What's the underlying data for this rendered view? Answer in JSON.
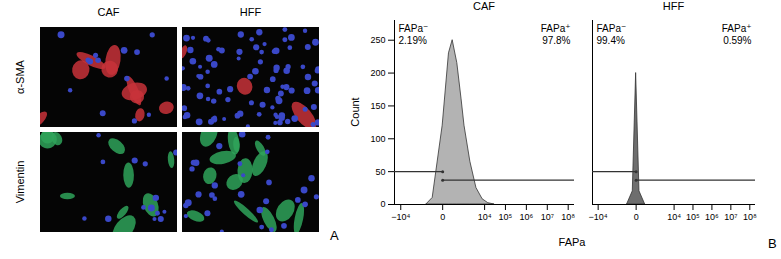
{
  "panel_a": {
    "letter": "A",
    "columns": [
      "CAF",
      "HFF"
    ],
    "rows": [
      "α-SMA",
      "Vimentin"
    ]
  },
  "panel_b": {
    "letter": "B",
    "xlabel": "FAPa",
    "ylabel": "Count"
  },
  "chart_data": [
    {
      "type": "area",
      "title": "CAF",
      "color": "#a6a6a6",
      "log": "x",
      "x": [
        -500,
        -200,
        0,
        100,
        200,
        400,
        700,
        1000,
        2000,
        4000,
        8000,
        15000,
        30000
      ],
      "values": [
        0,
        10,
        120,
        230,
        250,
        215,
        160,
        120,
        65,
        25,
        8,
        2,
        0
      ],
      "xlim": [
        -20000,
        200000000
      ],
      "xticks": [
        {
          "value": -10000,
          "label": "−10⁴"
        },
        0,
        {
          "value": 10000,
          "label": "10⁴"
        },
        {
          "value": 100000,
          "label": "10⁵"
        },
        {
          "value": 1000000,
          "label": "10⁶"
        },
        {
          "value": 10000000,
          "label": "10⁷"
        },
        {
          "value": 100000000,
          "label": "10⁸"
        }
      ],
      "ylim": [
        0,
        280
      ],
      "yticks": [
        0,
        50,
        100,
        150,
        200,
        250
      ],
      "gates": [
        {
          "name": "FAPa⁻",
          "value": 2.19,
          "value_label": "2.19%",
          "range": [
            -20000,
            0
          ],
          "level": 50
        },
        {
          "name": "FAPa⁺",
          "value": 97.8,
          "value_label": "97.8%",
          "range": [
            0,
            200000000
          ],
          "level": 37
        }
      ]
    },
    {
      "type": "area",
      "title": "HFF",
      "color": "#555555",
      "log": "x",
      "tick_labels": "x",
      "x": [
        -200,
        -50,
        0,
        50,
        200
      ],
      "values": [
        0,
        20,
        200,
        20,
        0
      ],
      "xlim": [
        -20000,
        200000000
      ],
      "xticks": [
        {
          "value": -10000,
          "label": "−10⁴"
        },
        0,
        {
          "value": 10000,
          "label": "10⁴"
        },
        {
          "value": 100000,
          "label": "10⁵"
        },
        {
          "value": 1000000,
          "label": "10⁶"
        },
        {
          "value": 10000000,
          "label": "10⁷"
        },
        {
          "value": 100000000,
          "label": "10⁸"
        }
      ],
      "ylim": [
        0,
        280
      ],
      "gates": [
        {
          "name": "FAPa⁻",
          "value": 99.4,
          "value_label": "99.4%",
          "range": [
            -20000,
            0
          ],
          "level": 50
        },
        {
          "name": "FAPa⁺",
          "value": 0.59,
          "value_label": "0.59%",
          "range": [
            0,
            200000000
          ],
          "level": 37
        }
      ]
    }
  ]
}
